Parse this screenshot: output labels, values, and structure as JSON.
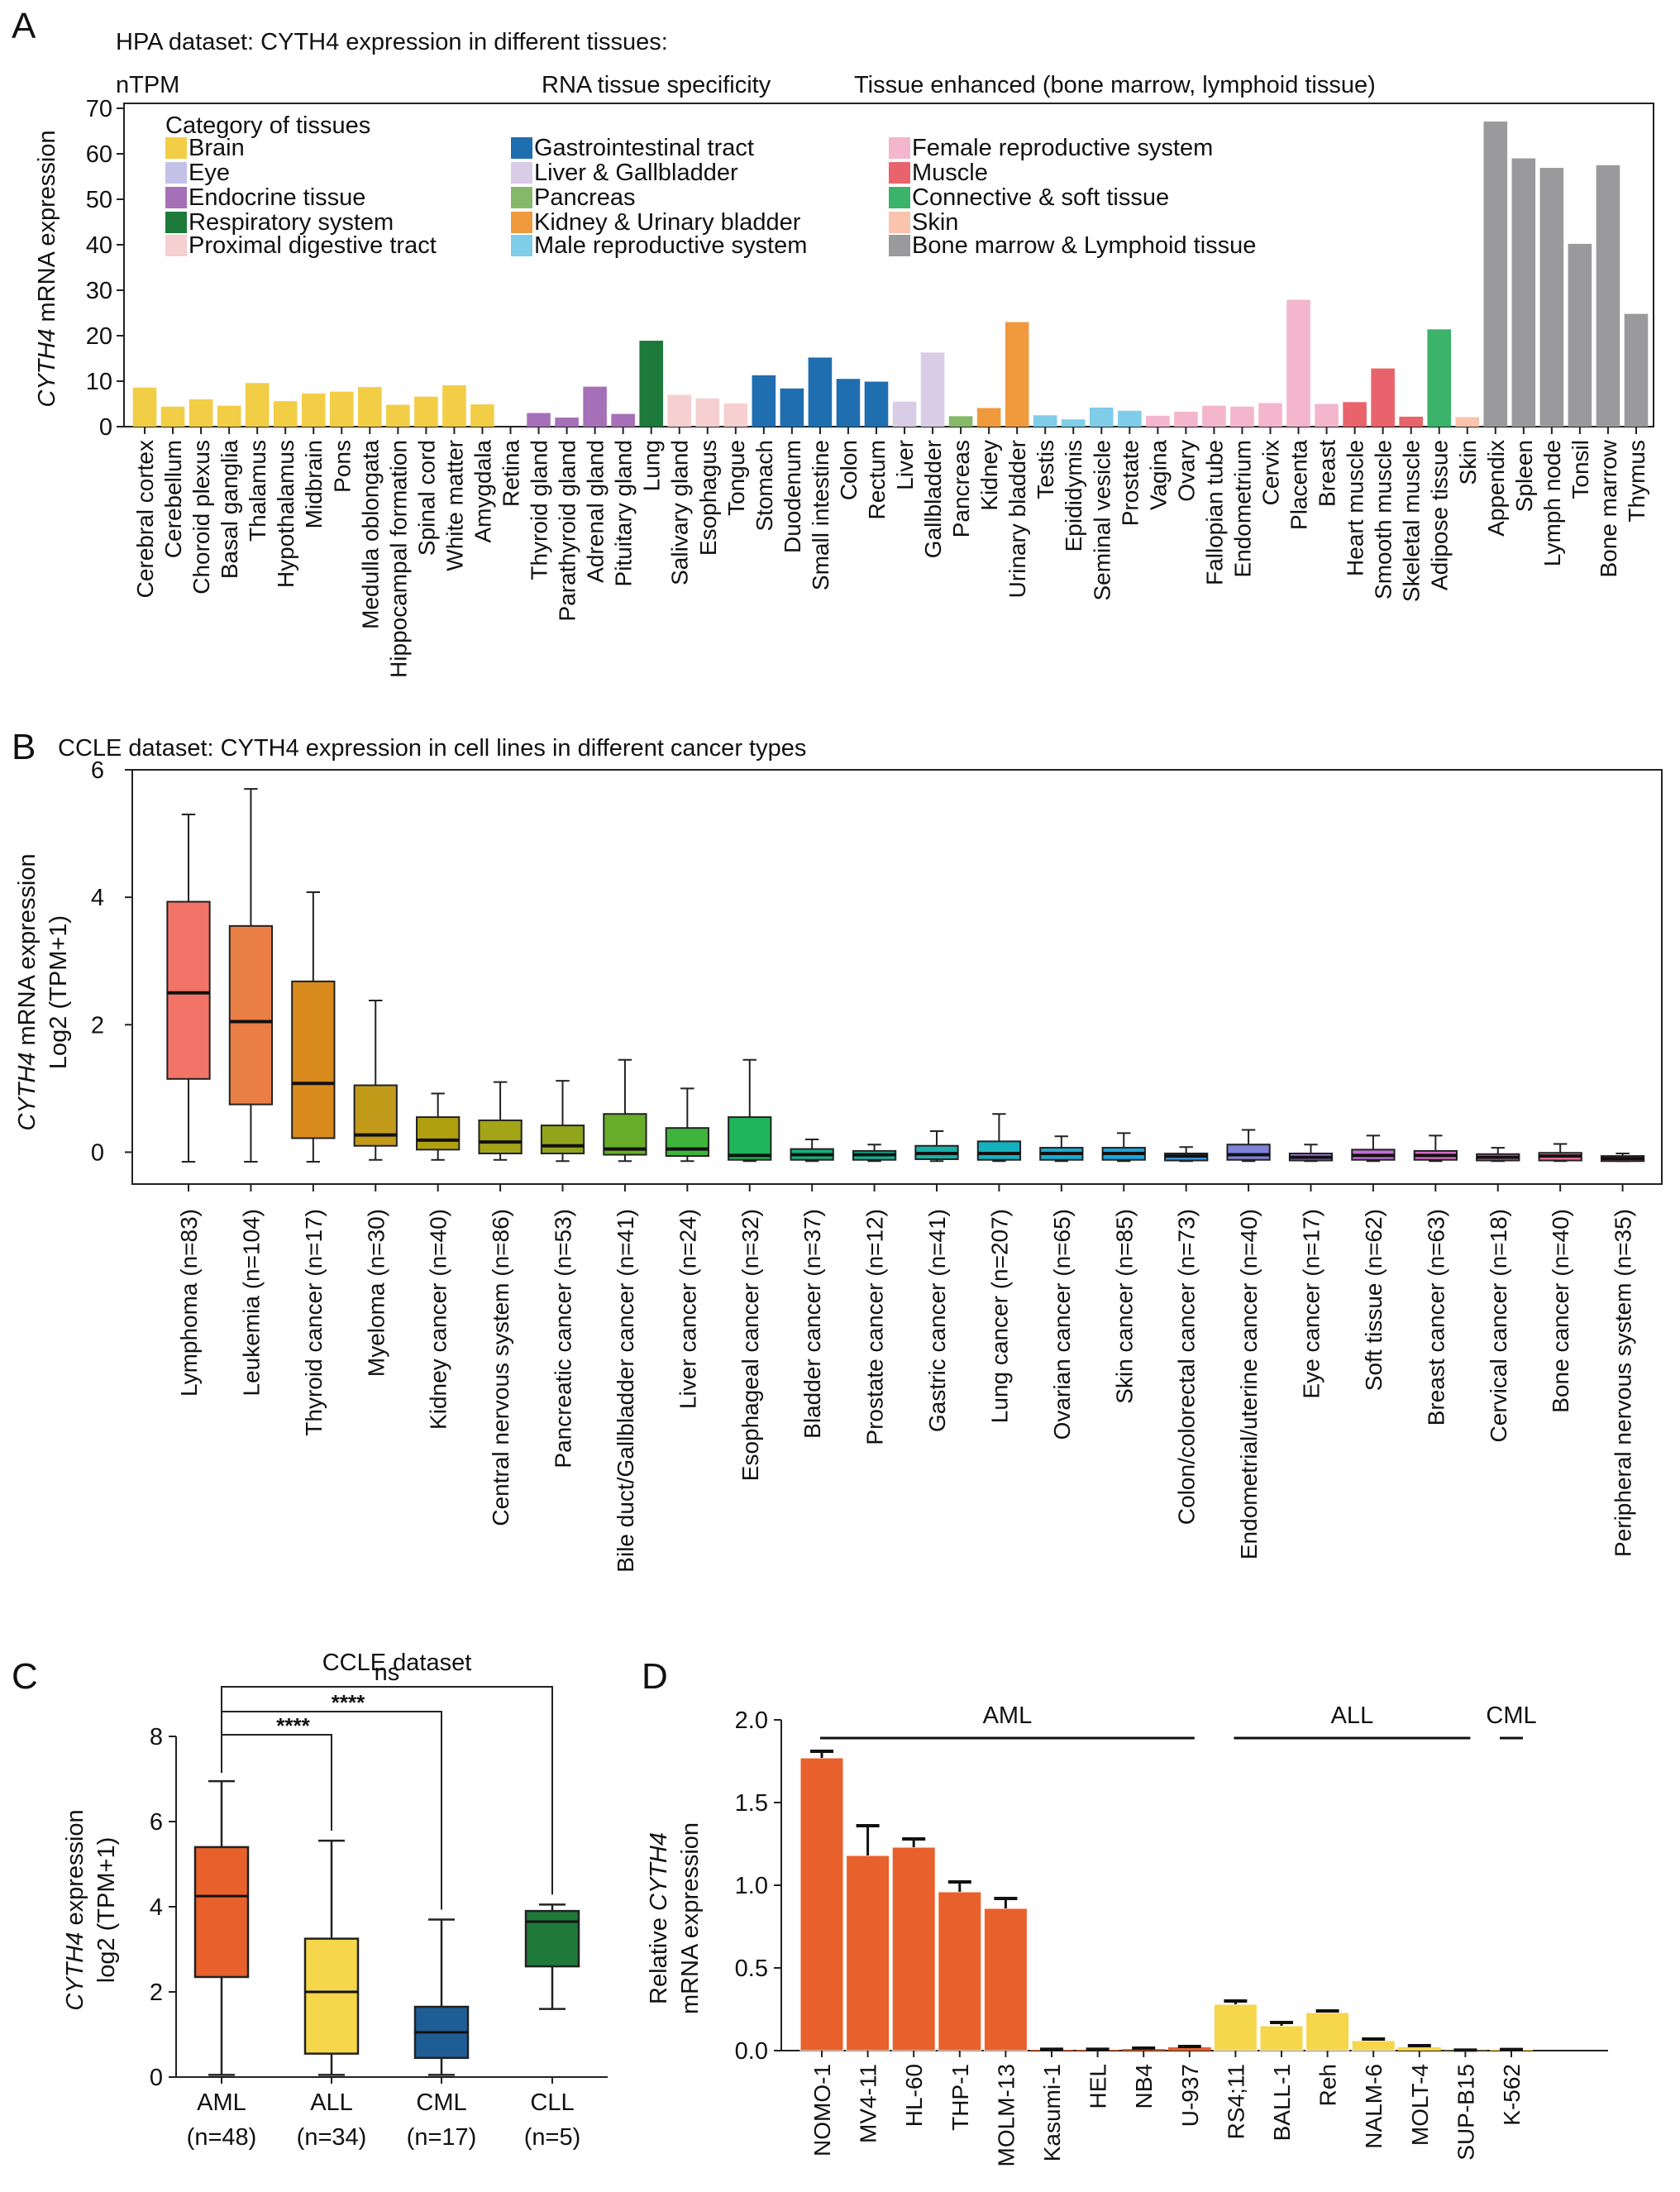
{
  "panels": {
    "A": "A",
    "B": "B",
    "C": "C",
    "D": "D"
  },
  "chart_data": [
    {
      "panel": "A",
      "type": "bar",
      "title": "HPA dataset: CYTH4 expression in different tissues:",
      "unit_label": "nTPM",
      "specificity_label": "RNA tissue specificity",
      "specificity_value": "Tissue enhanced (bone marrow, lymphoid tissue)",
      "ylabel_italic": "CYTH4",
      "ylabel_rest": " mRNA expression",
      "ylim": [
        0,
        70
      ],
      "yticks": [
        0,
        10,
        20,
        30,
        40,
        50,
        60,
        70
      ],
      "legend_title": "Category of tissues",
      "legend": [
        {
          "name": "Brain",
          "color": "#f2cd46"
        },
        {
          "name": "Eye",
          "color": "#c3c2e6"
        },
        {
          "name": "Endocrine tissue",
          "color": "#a670b8"
        },
        {
          "name": "Respiratory system",
          "color": "#1d7a3a"
        },
        {
          "name": "Proximal digestive tract",
          "color": "#f6cfd0"
        },
        {
          "name": "Gastrointestinal tract",
          "color": "#1f6eb0"
        },
        {
          "name": "Liver & Gallbladder",
          "color": "#d9cce6"
        },
        {
          "name": "Pancreas",
          "color": "#86b86a"
        },
        {
          "name": "Kidney & Urinary bladder",
          "color": "#f09a3e"
        },
        {
          "name": "Male reproductive system",
          "color": "#7fcde8"
        },
        {
          "name": "Female reproductive system",
          "color": "#f4b6cc"
        },
        {
          "name": "Muscle",
          "color": "#e8636b"
        },
        {
          "name": "Connective & soft tissue",
          "color": "#3cb36a"
        },
        {
          "name": "Skin",
          "color": "#f9c3ad"
        },
        {
          "name": "Bone marrow & Lymphoid tissue",
          "color": "#9a9a9c"
        }
      ],
      "bars": [
        {
          "label": "Cerebral cortex",
          "value": 8.6,
          "cat": 0
        },
        {
          "label": "Cerebellum",
          "value": 4.4,
          "cat": 0
        },
        {
          "label": "Choroid plexus",
          "value": 6.0,
          "cat": 0
        },
        {
          "label": "Basal ganglia",
          "value": 4.6,
          "cat": 0
        },
        {
          "label": "Thalamus",
          "value": 9.6,
          "cat": 0
        },
        {
          "label": "Hypothalamus",
          "value": 5.6,
          "cat": 0
        },
        {
          "label": "Midbrain",
          "value": 7.3,
          "cat": 0
        },
        {
          "label": "Pons",
          "value": 7.7,
          "cat": 0
        },
        {
          "label": "Medulla oblongata",
          "value": 8.7,
          "cat": 0
        },
        {
          "label": "Hippocampal formation",
          "value": 4.8,
          "cat": 0
        },
        {
          "label": "Spinal cord",
          "value": 6.6,
          "cat": 0
        },
        {
          "label": "White matter",
          "value": 9.1,
          "cat": 0
        },
        {
          "label": "Amygdala",
          "value": 4.9,
          "cat": 0
        },
        {
          "label": "Retina",
          "value": 0,
          "cat": 1
        },
        {
          "label": "Thyroid gland",
          "value": 3.0,
          "cat": 2
        },
        {
          "label": "Parathyroid gland",
          "value": 2.0,
          "cat": 2
        },
        {
          "label": "Adrenal gland",
          "value": 8.8,
          "cat": 2
        },
        {
          "label": "Pituitary gland",
          "value": 2.8,
          "cat": 2
        },
        {
          "label": "Lung",
          "value": 18.9,
          "cat": 3
        },
        {
          "label": "Salivary gland",
          "value": 7.0,
          "cat": 4
        },
        {
          "label": "Esophagus",
          "value": 6.2,
          "cat": 4
        },
        {
          "label": "Tongue",
          "value": 5.1,
          "cat": 4
        },
        {
          "label": "Stomach",
          "value": 11.3,
          "cat": 5
        },
        {
          "label": "Duodenum",
          "value": 8.4,
          "cat": 5
        },
        {
          "label": "Small intestine",
          "value": 15.2,
          "cat": 5
        },
        {
          "label": "Colon",
          "value": 10.5,
          "cat": 5
        },
        {
          "label": "Rectum",
          "value": 9.9,
          "cat": 5
        },
        {
          "label": "Liver",
          "value": 5.5,
          "cat": 6
        },
        {
          "label": "Gallbladder",
          "value": 16.3,
          "cat": 6
        },
        {
          "label": "Pancreas",
          "value": 2.3,
          "cat": 7
        },
        {
          "label": "Kidney",
          "value": 4.1,
          "cat": 8
        },
        {
          "label": "Urinary bladder",
          "value": 23.0,
          "cat": 8
        },
        {
          "label": "Testis",
          "value": 2.5,
          "cat": 9
        },
        {
          "label": "Epididymis",
          "value": 1.6,
          "cat": 9
        },
        {
          "label": "Seminal vesicle",
          "value": 4.2,
          "cat": 9
        },
        {
          "label": "Prostate",
          "value": 3.5,
          "cat": 9
        },
        {
          "label": "Vagina",
          "value": 2.4,
          "cat": 10
        },
        {
          "label": "Ovary",
          "value": 3.3,
          "cat": 10
        },
        {
          "label": "Fallopian tube",
          "value": 4.6,
          "cat": 10
        },
        {
          "label": "Endometrium",
          "value": 4.4,
          "cat": 10
        },
        {
          "label": "Cervix",
          "value": 5.2,
          "cat": 10
        },
        {
          "label": "Placenta",
          "value": 27.9,
          "cat": 10
        },
        {
          "label": "Breast",
          "value": 5.0,
          "cat": 10
        },
        {
          "label": "Heart muscle",
          "value": 5.4,
          "cat": 11
        },
        {
          "label": "Smooth muscle",
          "value": 12.8,
          "cat": 11
        },
        {
          "label": "Skeletal muscle",
          "value": 2.2,
          "cat": 11
        },
        {
          "label": "Adipose tissue",
          "value": 21.4,
          "cat": 12
        },
        {
          "label": "Skin",
          "value": 2.1,
          "cat": 13
        },
        {
          "label": "Appendix",
          "value": 67.1,
          "cat": 14
        },
        {
          "label": "Spleen",
          "value": 59.0,
          "cat": 14
        },
        {
          "label": "Lymph node",
          "value": 56.9,
          "cat": 14
        },
        {
          "label": "Tonsil",
          "value": 40.2,
          "cat": 14
        },
        {
          "label": "Bone marrow",
          "value": 57.5,
          "cat": 14
        },
        {
          "label": "Thymus",
          "value": 24.8,
          "cat": 14
        }
      ]
    },
    {
      "panel": "B",
      "type": "box",
      "title": "CCLE dataset: CYTH4 expression in cell lines in different cancer types",
      "ylabel_italic": "CYTH4",
      "ylabel_rest": " mRNA expression",
      "ylabel_line2": "Log2 (TPM+1)",
      "ylim": [
        -0.5,
        6
      ],
      "yticks": [
        0,
        2,
        4,
        6
      ],
      "groups": [
        {
          "label": "Lymphoma (n=83)",
          "color": "#f27367",
          "min": -0.15,
          "q1": 1.15,
          "median": 2.5,
          "q3": 3.93,
          "max": 5.3
        },
        {
          "label": "Leukemia (n=104)",
          "color": "#ea7f45",
          "min": -0.15,
          "q1": 0.75,
          "median": 2.05,
          "q3": 3.55,
          "max": 5.7
        },
        {
          "label": "Thyroid cancer (n=17)",
          "color": "#d98a1c",
          "min": -0.15,
          "q1": 0.22,
          "median": 1.08,
          "q3": 2.68,
          "max": 4.08
        },
        {
          "label": "Myeloma (n=30)",
          "color": "#c29a1a",
          "min": -0.12,
          "q1": 0.1,
          "median": 0.27,
          "q3": 1.05,
          "max": 2.38
        },
        {
          "label": "Kidney cancer (n=40)",
          "color": "#b0a010",
          "min": -0.12,
          "q1": 0.04,
          "median": 0.19,
          "q3": 0.55,
          "max": 0.92
        },
        {
          "label": "Central nervous system (n=86)",
          "color": "#a3a416",
          "min": -0.12,
          "q1": -0.02,
          "median": 0.16,
          "q3": 0.5,
          "max": 1.1
        },
        {
          "label": "Pancreatic cancer (n=53)",
          "color": "#90a41c",
          "min": -0.14,
          "q1": -0.02,
          "median": 0.1,
          "q3": 0.42,
          "max": 1.12
        },
        {
          "label": "Bile duct/Gallbladder cancer (n=41)",
          "color": "#68ad2a",
          "min": -0.14,
          "q1": -0.04,
          "median": 0.05,
          "q3": 0.6,
          "max": 1.45
        },
        {
          "label": "Liver cancer (n=24)",
          "color": "#3fb43c",
          "min": -0.14,
          "q1": -0.06,
          "median": 0.05,
          "q3": 0.38,
          "max": 1.0
        },
        {
          "label": "Esophageal cancer (n=32)",
          "color": "#1fb55a",
          "min": -0.14,
          "q1": -0.12,
          "median": -0.05,
          "q3": 0.55,
          "max": 1.45
        },
        {
          "label": "Bladder cancer (n=37)",
          "color": "#19b07b",
          "min": -0.14,
          "q1": -0.12,
          "median": -0.04,
          "q3": 0.05,
          "max": 0.2
        },
        {
          "label": "Prostate cancer (n=12)",
          "color": "#16b093",
          "min": -0.14,
          "q1": -0.12,
          "median": -0.04,
          "q3": 0.02,
          "max": 0.12
        },
        {
          "label": "Gastric cancer (n=41)",
          "color": "#16b1a8",
          "min": -0.14,
          "q1": -0.11,
          "median": -0.02,
          "q3": 0.1,
          "max": 0.33
        },
        {
          "label": "Lung cancer (n=207)",
          "color": "#16b1be",
          "min": -0.14,
          "q1": -0.12,
          "median": -0.02,
          "q3": 0.17,
          "max": 0.6
        },
        {
          "label": "Ovarian cancer (n=65)",
          "color": "#16aed1",
          "min": -0.14,
          "q1": -0.12,
          "median": -0.02,
          "q3": 0.07,
          "max": 0.25
        },
        {
          "label": "Skin cancer (n=85)",
          "color": "#1ba6e0",
          "min": -0.14,
          "q1": -0.12,
          "median": -0.02,
          "q3": 0.07,
          "max": 0.3
        },
        {
          "label": "Colon/colorectal cancer (n=73)",
          "color": "#3b97e3",
          "min": -0.14,
          "q1": -0.13,
          "median": -0.06,
          "q3": -0.02,
          "max": 0.08
        },
        {
          "label": "Endometrial/uterine cancer (n=40)",
          "color": "#7f82d9",
          "min": -0.14,
          "q1": -0.12,
          "median": -0.04,
          "q3": 0.12,
          "max": 0.35
        },
        {
          "label": "Eye cancer (n=17)",
          "color": "#9d78d6",
          "min": -0.14,
          "q1": -0.13,
          "median": -0.08,
          "q3": -0.02,
          "max": 0.12
        },
        {
          "label": "Soft tissue (n=62)",
          "color": "#c06fd4",
          "min": -0.14,
          "q1": -0.12,
          "median": -0.05,
          "q3": 0.04,
          "max": 0.26
        },
        {
          "label": "Breast cancer (n=63)",
          "color": "#d96bc7",
          "min": -0.14,
          "q1": -0.12,
          "median": -0.05,
          "q3": 0.02,
          "max": 0.26
        },
        {
          "label": "Cervical cancer (n=18)",
          "color": "#e76aaf",
          "min": -0.14,
          "q1": -0.13,
          "median": -0.08,
          "q3": -0.03,
          "max": 0.07
        },
        {
          "label": "Bone cancer (n=40)",
          "color": "#ef6e98",
          "min": -0.14,
          "q1": -0.13,
          "median": -0.06,
          "q3": -0.01,
          "max": 0.13
        },
        {
          "label": "Peripheral nervous system (n=35)",
          "color": "#f37080",
          "min": -0.14,
          "q1": -0.14,
          "median": -0.1,
          "q3": -0.06,
          "max": -0.02
        }
      ]
    },
    {
      "panel": "C",
      "type": "box",
      "title": "CCLE dataset",
      "ylabel_italic": "CYTH4",
      "ylabel_rest": " expression",
      "ylabel_line2": "log2 (TPM+1)",
      "ylim": [
        0,
        8
      ],
      "yticks": [
        0,
        2,
        4,
        6,
        8
      ],
      "groups": [
        {
          "label": "AML",
          "n": "(n=48)",
          "color": "#e8612c",
          "min": 0.05,
          "q1": 2.35,
          "median": 4.25,
          "q3": 5.4,
          "max": 6.95
        },
        {
          "label": "ALL",
          "n": "(n=34)",
          "color": "#f6d64a",
          "min": 0.05,
          "q1": 0.55,
          "median": 2.0,
          "q3": 3.25,
          "max": 5.55
        },
        {
          "label": "CML",
          "n": "(n=17)",
          "color": "#1f5e95",
          "min": 0.05,
          "q1": 0.45,
          "median": 1.05,
          "q3": 1.65,
          "max": 3.7
        },
        {
          "label": "CLL",
          "n": "(n=5)",
          "color": "#1f7a3a",
          "min": 1.6,
          "q1": 2.6,
          "median": 3.65,
          "q3": 3.9,
          "max": 4.05
        }
      ],
      "annotations": [
        {
          "from": "AML",
          "to": "ALL",
          "text": "****"
        },
        {
          "from": "AML",
          "to": "CML",
          "text": "****"
        },
        {
          "from": "AML",
          "to": "CLL",
          "text": "ns"
        }
      ]
    },
    {
      "panel": "D",
      "type": "bar",
      "ylabel_line1_pre": "Relative ",
      "ylabel_line1_italic": "CYTH4",
      "ylabel_line2": "mRNA expression",
      "ylim": [
        0,
        2.0
      ],
      "yticks": [
        "0.0",
        "0.5",
        "1.0",
        "1.5",
        "2.0"
      ],
      "bars": [
        {
          "label": "NOMO-1",
          "value": 1.77,
          "err": 0.04,
          "group": "AML"
        },
        {
          "label": "MV4-11",
          "value": 1.18,
          "err": 0.18,
          "group": "AML"
        },
        {
          "label": "HL-60",
          "value": 1.23,
          "err": 0.05,
          "group": "AML"
        },
        {
          "label": "THP-1",
          "value": 0.96,
          "err": 0.06,
          "group": "AML"
        },
        {
          "label": "MOLM-13",
          "value": 0.86,
          "err": 0.06,
          "group": "AML"
        },
        {
          "label": "Kasumi-1",
          "value": 0.005,
          "err": 0.003,
          "group": "AML"
        },
        {
          "label": "HEL",
          "value": 0.005,
          "err": 0.003,
          "group": "AML"
        },
        {
          "label": "NB4",
          "value": 0.01,
          "err": 0.005,
          "group": "AML"
        },
        {
          "label": "U-937",
          "value": 0.02,
          "err": 0.005,
          "group": "AML"
        },
        {
          "label": "RS4;11",
          "value": 0.28,
          "err": 0.02,
          "group": "ALL"
        },
        {
          "label": "BALL-1",
          "value": 0.15,
          "err": 0.02,
          "group": "ALL"
        },
        {
          "label": "Reh",
          "value": 0.23,
          "err": 0.01,
          "group": "ALL"
        },
        {
          "label": "NALM-6",
          "value": 0.06,
          "err": 0.01,
          "group": "ALL"
        },
        {
          "label": "MOLT-4",
          "value": 0.02,
          "err": 0.01,
          "group": "ALL"
        },
        {
          "label": "SUP-B15",
          "value": 0.002,
          "err": 0.001,
          "group": "ALL"
        },
        {
          "label": "K-562",
          "value": 0.005,
          "err": 0.002,
          "group": "CML"
        }
      ],
      "group_labels": [
        "AML",
        "ALL",
        "CML"
      ],
      "group_colors": {
        "AML": "#e8612c",
        "ALL": "#f6d64a",
        "CML": "#f6d64a"
      }
    }
  ]
}
